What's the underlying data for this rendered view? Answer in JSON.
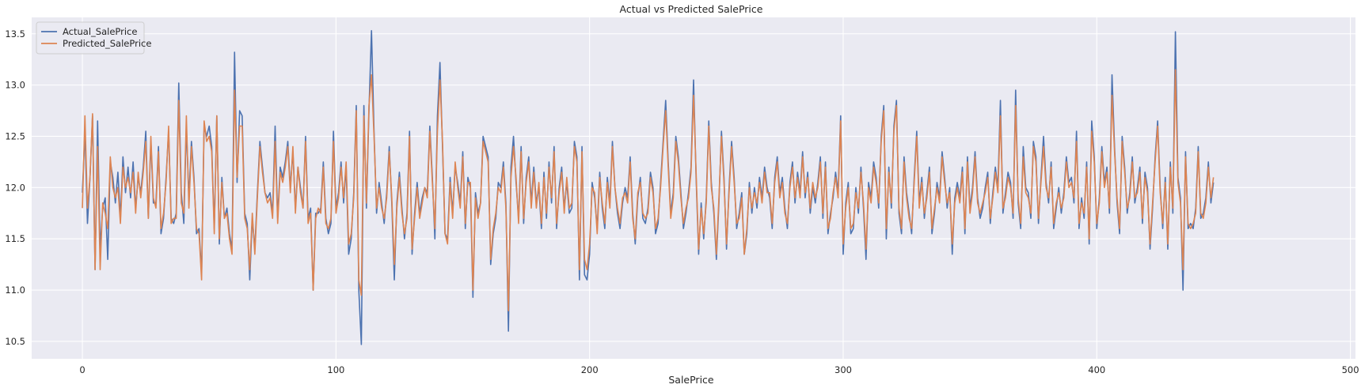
{
  "chart_data": {
    "type": "line",
    "title": "Actual vs Predicted SalePrice",
    "xlabel": "SalePrice",
    "ylabel": "",
    "xlim": [
      -20,
      502
    ],
    "ylim": [
      10.33,
      13.66
    ],
    "xticks": [
      0,
      100,
      200,
      300,
      400,
      500
    ],
    "yticks": [
      10.5,
      11.0,
      11.5,
      12.0,
      12.5,
      13.0,
      13.5
    ],
    "ytick_labels": [
      "10.5",
      "11.0",
      "11.5",
      "12.0",
      "12.5",
      "13.0",
      "13.5"
    ],
    "grid": true,
    "legend_position": "top-left",
    "background": "#eaeaf2",
    "x_start": 0,
    "series": [
      {
        "name": "Actual_SalePrice",
        "color": "#4c72b0",
        "values": [
          11.95,
          12.55,
          11.65,
          12.1,
          12.7,
          11.2,
          12.65,
          11.4,
          11.8,
          11.9,
          11.3,
          12.25,
          12.1,
          11.85,
          12.15,
          11.7,
          12.3,
          11.95,
          12.2,
          11.9,
          12.25,
          11.8,
          12.1,
          11.95,
          12.2,
          12.55,
          11.7,
          12.45,
          11.85,
          11.85,
          12.4,
          11.55,
          11.7,
          12.1,
          12.55,
          11.7,
          11.65,
          11.75,
          13.02,
          11.95,
          11.65,
          12.6,
          11.9,
          12.45,
          12.1,
          11.55,
          11.6,
          11.15,
          12.6,
          12.5,
          12.6,
          12.4,
          11.6,
          12.7,
          11.45,
          12.1,
          11.7,
          11.8,
          11.55,
          11.4,
          13.32,
          12.05,
          12.75,
          12.7,
          11.75,
          11.65,
          11.1,
          11.7,
          11.4,
          11.95,
          12.45,
          12.2,
          11.95,
          11.9,
          11.95,
          11.75,
          12.6,
          11.7,
          12.2,
          12.1,
          12.25,
          12.45,
          12.0,
          12.35,
          11.8,
          12.2,
          12.0,
          11.8,
          12.5,
          11.7,
          11.8,
          11.0,
          11.75,
          11.75,
          11.8,
          12.25,
          11.7,
          11.55,
          11.65,
          12.55,
          11.8,
          11.95,
          12.25,
          11.85,
          12.2,
          11.35,
          11.5,
          11.95,
          12.8,
          11.0,
          10.47,
          12.8,
          11.8,
          12.75,
          13.53,
          12.55,
          11.75,
          12.05,
          11.85,
          11.65,
          11.95,
          12.4,
          11.85,
          11.1,
          11.85,
          12.15,
          11.8,
          11.5,
          11.75,
          12.55,
          11.35,
          11.75,
          12.05,
          11.75,
          11.9,
          12.0,
          11.95,
          12.6,
          12.1,
          11.5,
          12.7,
          13.22,
          12.4,
          11.55,
          11.5,
          12.1,
          11.75,
          12.2,
          12.05,
          11.85,
          12.35,
          11.6,
          12.1,
          12.0,
          10.93,
          11.95,
          11.75,
          11.85,
          12.5,
          12.4,
          12.3,
          11.25,
          11.55,
          11.7,
          12.05,
          12.0,
          12.25,
          11.85,
          10.6,
          12.2,
          12.5,
          12.05,
          11.7,
          12.4,
          11.65,
          12.1,
          12.3,
          11.85,
          12.2,
          11.85,
          12.0,
          11.6,
          12.15,
          11.7,
          12.25,
          11.85,
          12.4,
          11.6,
          12.0,
          12.2,
          11.8,
          12.05,
          11.75,
          11.8,
          12.45,
          12.3,
          11.1,
          12.4,
          11.15,
          11.1,
          11.35,
          12.05,
          11.9,
          11.6,
          12.15,
          11.8,
          11.6,
          12.1,
          11.85,
          12.45,
          12.0,
          11.75,
          11.6,
          11.85,
          12.0,
          11.9,
          12.3,
          11.75,
          11.45,
          11.9,
          12.1,
          11.7,
          11.65,
          11.8,
          12.15,
          12.0,
          11.55,
          11.65,
          12.05,
          12.45,
          12.85,
          12.25,
          11.75,
          11.95,
          12.5,
          12.3,
          11.95,
          11.6,
          11.75,
          11.95,
          12.2,
          13.05,
          12.1,
          11.35,
          11.85,
          11.5,
          11.9,
          12.65,
          12.05,
          11.75,
          11.3,
          11.85,
          12.55,
          12.1,
          11.4,
          12.0,
          12.45,
          12.1,
          11.6,
          11.75,
          11.95,
          11.35,
          11.55,
          12.05,
          11.75,
          12.0,
          11.8,
          12.1,
          11.9,
          12.2,
          12.0,
          11.9,
          11.6,
          12.1,
          12.3,
          11.95,
          12.1,
          11.8,
          11.6,
          12.05,
          12.25,
          11.85,
          12.15,
          11.95,
          12.35,
          11.9,
          12.15,
          11.75,
          12.0,
          11.85,
          12.05,
          12.3,
          11.7,
          12.25,
          11.55,
          11.75,
          11.9,
          12.15,
          11.95,
          12.7,
          11.35,
          11.85,
          12.05,
          11.55,
          11.6,
          12.0,
          11.75,
          12.2,
          11.8,
          11.3,
          12.05,
          11.9,
          12.25,
          12.1,
          11.8,
          12.5,
          12.8,
          11.5,
          12.2,
          11.8,
          12.6,
          12.85,
          11.75,
          11.55,
          12.3,
          11.95,
          11.75,
          11.55,
          12.1,
          12.55,
          11.85,
          12.1,
          11.7,
          11.95,
          12.2,
          11.55,
          11.75,
          12.05,
          11.9,
          12.35,
          12.1,
          11.8,
          12.0,
          11.35,
          11.9,
          12.05,
          11.9,
          12.2,
          11.55,
          12.3,
          11.8,
          12.0,
          12.35,
          11.9,
          11.7,
          11.8,
          12.0,
          12.15,
          11.65,
          11.95,
          12.2,
          12.0,
          12.85,
          11.75,
          11.95,
          12.15,
          12.05,
          11.7,
          12.95,
          11.85,
          11.6,
          12.4,
          12.0,
          11.95,
          11.7,
          12.45,
          12.3,
          11.65,
          12.1,
          12.5,
          12.05,
          11.85,
          12.25,
          11.6,
          11.8,
          12.0,
          11.75,
          11.95,
          12.3,
          12.05,
          12.1,
          11.85,
          12.55,
          11.6,
          11.9,
          11.7,
          12.25,
          11.45,
          12.65,
          12.3,
          11.6,
          11.9,
          12.4,
          12.05,
          12.2,
          11.75,
          13.1,
          12.4,
          11.85,
          11.55,
          12.5,
          12.2,
          11.75,
          11.95,
          12.3,
          11.85,
          12.0,
          12.2,
          11.65,
          12.15,
          12.0,
          11.4,
          11.8,
          12.3,
          12.65,
          12.0,
          11.6,
          12.1,
          11.4,
          12.25,
          11.75,
          13.52,
          12.1,
          11.9,
          11.0,
          12.35,
          11.6,
          11.65,
          11.6,
          11.8,
          12.4,
          11.7,
          11.75,
          11.9,
          12.25,
          11.85,
          12.05
        ]
      },
      {
        "name": "Predicted_SalePrice",
        "color": "#dd8452",
        "values": [
          11.8,
          12.7,
          11.8,
          12.1,
          12.72,
          11.2,
          12.4,
          11.2,
          11.85,
          11.75,
          11.6,
          12.3,
          12.0,
          11.9,
          12.0,
          11.65,
          12.2,
          12.0,
          12.1,
          11.95,
          12.15,
          11.75,
          12.15,
          11.9,
          12.15,
          12.45,
          11.7,
          12.5,
          11.9,
          11.8,
          12.35,
          11.6,
          11.75,
          12.05,
          12.6,
          11.65,
          11.7,
          11.7,
          12.85,
          11.85,
          11.75,
          12.7,
          11.8,
          12.4,
          12.05,
          11.6,
          11.55,
          11.1,
          12.65,
          12.45,
          12.5,
          12.35,
          11.55,
          12.7,
          11.5,
          12.05,
          11.7,
          11.75,
          11.5,
          11.35,
          12.95,
          12.1,
          12.6,
          12.6,
          11.7,
          11.6,
          11.2,
          11.75,
          11.35,
          11.9,
          12.4,
          12.15,
          11.95,
          11.85,
          11.9,
          11.7,
          12.45,
          11.65,
          12.15,
          12.05,
          12.2,
          12.4,
          11.95,
          12.4,
          11.75,
          12.2,
          11.95,
          11.8,
          12.45,
          11.65,
          11.75,
          11.0,
          11.7,
          11.8,
          11.75,
          12.2,
          11.65,
          11.6,
          11.7,
          12.45,
          11.75,
          11.9,
          12.2,
          11.9,
          12.25,
          11.45,
          11.55,
          11.9,
          12.75,
          11.1,
          10.95,
          12.7,
          11.85,
          12.8,
          13.1,
          12.5,
          11.8,
          12.0,
          11.8,
          11.7,
          11.9,
          12.35,
          11.9,
          11.25,
          11.8,
          12.1,
          11.75,
          11.55,
          11.7,
          12.5,
          11.4,
          11.7,
          12.0,
          11.7,
          11.85,
          12.0,
          11.9,
          12.55,
          12.05,
          11.6,
          12.55,
          13.05,
          12.45,
          11.55,
          11.45,
          12.05,
          11.7,
          12.25,
          12.0,
          11.8,
          12.3,
          11.65,
          12.05,
          12.05,
          11.0,
          11.9,
          11.7,
          11.85,
          12.45,
          12.35,
          12.25,
          11.3,
          11.6,
          11.75,
          12.0,
          11.95,
          12.2,
          11.8,
          10.8,
          12.1,
          12.4,
          12.1,
          11.65,
          12.35,
          11.7,
          12.05,
          12.25,
          11.8,
          12.15,
          11.8,
          12.05,
          11.65,
          12.1,
          11.75,
          12.2,
          11.9,
          12.35,
          11.65,
          11.95,
          12.15,
          11.75,
          12.1,
          11.8,
          11.85,
          12.4,
          12.25,
          11.2,
          12.35,
          11.3,
          11.2,
          11.45,
          12.0,
          11.95,
          11.55,
          12.1,
          11.85,
          11.65,
          12.05,
          11.8,
          12.4,
          12.0,
          11.8,
          11.65,
          11.9,
          11.95,
          11.85,
          12.25,
          11.7,
          11.5,
          11.95,
          12.05,
          11.75,
          11.7,
          11.75,
          12.1,
          11.95,
          11.6,
          11.7,
          12.0,
          12.4,
          12.75,
          12.2,
          11.7,
          11.9,
          12.45,
          12.25,
          11.9,
          11.65,
          11.8,
          11.9,
          12.15,
          12.9,
          12.15,
          11.4,
          11.8,
          11.55,
          11.85,
          12.6,
          12.0,
          11.8,
          11.35,
          11.9,
          12.5,
          12.05,
          11.45,
          11.95,
          12.4,
          12.05,
          11.65,
          11.7,
          11.9,
          11.35,
          11.6,
          12.0,
          11.8,
          11.95,
          11.85,
          12.05,
          11.85,
          12.15,
          11.95,
          11.95,
          11.65,
          12.05,
          12.25,
          11.9,
          12.05,
          11.75,
          11.65,
          12.0,
          12.2,
          11.9,
          12.1,
          11.9,
          12.3,
          11.95,
          12.1,
          11.8,
          12.05,
          11.9,
          12.0,
          12.25,
          11.75,
          12.2,
          11.6,
          11.7,
          11.95,
          12.1,
          11.9,
          12.65,
          11.45,
          11.8,
          12.0,
          11.6,
          11.65,
          11.95,
          11.8,
          12.15,
          11.85,
          11.4,
          12.0,
          11.85,
          12.2,
          12.05,
          11.85,
          12.45,
          12.75,
          11.6,
          12.15,
          11.85,
          12.55,
          12.8,
          11.8,
          11.6,
          12.25,
          11.9,
          11.7,
          11.6,
          12.05,
          12.5,
          11.8,
          12.05,
          11.75,
          11.9,
          12.15,
          11.6,
          11.8,
          12.0,
          11.85,
          12.3,
          12.05,
          11.85,
          11.95,
          11.45,
          11.85,
          12.0,
          11.85,
          12.15,
          11.6,
          12.25,
          11.75,
          11.95,
          12.3,
          11.85,
          11.75,
          11.85,
          11.95,
          12.1,
          11.7,
          11.9,
          12.15,
          11.95,
          12.7,
          11.8,
          11.9,
          12.1,
          12.0,
          11.75,
          12.8,
          11.9,
          11.65,
          12.3,
          11.95,
          11.9,
          11.75,
          12.4,
          12.25,
          11.7,
          12.05,
          12.4,
          12.0,
          11.9,
          12.2,
          11.65,
          11.85,
          11.95,
          11.8,
          11.9,
          12.25,
          12.0,
          12.05,
          11.9,
          12.45,
          11.65,
          11.85,
          11.75,
          12.2,
          11.5,
          12.55,
          12.25,
          11.65,
          11.85,
          12.35,
          12.0,
          12.15,
          11.8,
          12.9,
          12.35,
          11.9,
          11.6,
          12.45,
          12.15,
          11.8,
          11.9,
          12.25,
          11.9,
          11.95,
          12.15,
          11.7,
          12.1,
          11.95,
          11.45,
          11.85,
          12.25,
          12.6,
          11.95,
          11.65,
          12.05,
          11.45,
          12.2,
          11.8,
          13.15,
          12.05,
          11.85,
          11.2,
          12.3,
          11.65,
          11.6,
          11.65,
          11.75,
          12.35,
          11.75,
          11.7,
          11.85,
          12.2,
          11.9,
          12.1
        ]
      }
    ]
  }
}
